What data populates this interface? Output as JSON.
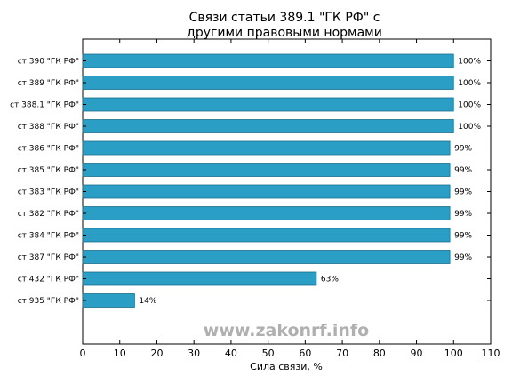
{
  "chart_data": {
    "type": "bar",
    "orientation": "horizontal",
    "title_lines": [
      "Связи статьи 389.1 \"ГК РФ\" с",
      "другими правовыми нормами"
    ],
    "xlabel": "Сила связи, %",
    "ylabel": "",
    "xlim": [
      0,
      110
    ],
    "xticks": [
      0,
      10,
      20,
      30,
      40,
      50,
      60,
      70,
      80,
      90,
      100,
      110
    ],
    "grid": false,
    "categories": [
      "ст 390 \"ГК РФ\"",
      "ст 389 \"ГК РФ\"",
      "ст 388.1 \"ГК РФ\"",
      "ст 388 \"ГК РФ\"",
      "ст 386 \"ГК РФ\"",
      "ст 385 \"ГК РФ\"",
      "ст 383 \"ГК РФ\"",
      "ст 382 \"ГК РФ\"",
      "ст 384 \"ГК РФ\"",
      "ст 387 \"ГК РФ\"",
      "ст 432 \"ГК РФ\"",
      "ст 935 \"ГК РФ\""
    ],
    "values": [
      100,
      100,
      100,
      100,
      99,
      99,
      99,
      99,
      99,
      99,
      63,
      14
    ],
    "value_labels": [
      "100%",
      "100%",
      "100%",
      "100%",
      "99%",
      "99%",
      "99%",
      "99%",
      "99%",
      "99%",
      "63%",
      "14%"
    ],
    "bar_color": "#2a9ec4",
    "bar_edge_color": "#1c6f8c"
  },
  "watermark": "www.zakonrf.info"
}
